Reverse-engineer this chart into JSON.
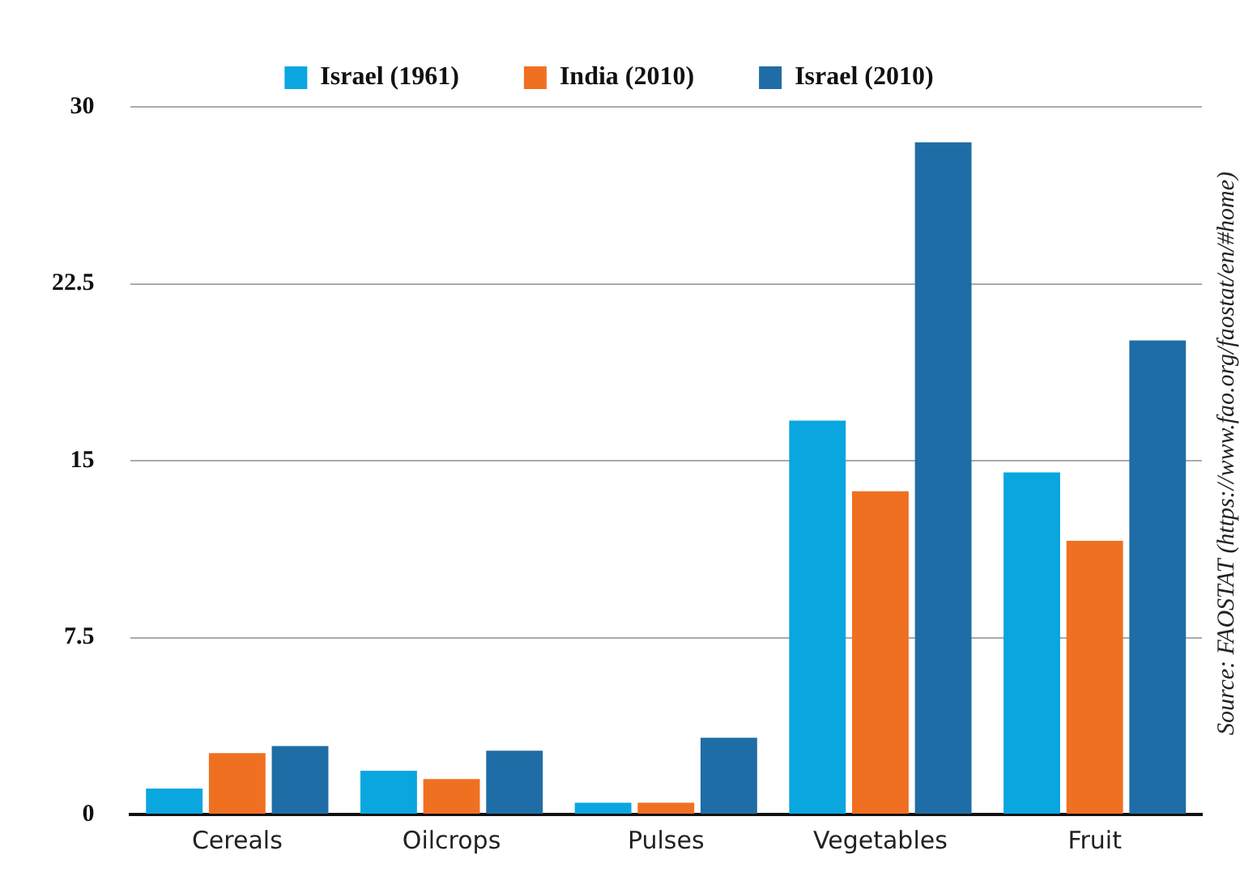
{
  "chart_data": {
    "type": "bar",
    "categories": [
      "Cereals",
      "Oilcrops",
      "Pulses",
      "Vegetables",
      "Fruit"
    ],
    "series": [
      {
        "name": "Israel (1961)",
        "color": "#0aa6e0",
        "values": [
          1.1,
          1.85,
          0.5,
          16.7,
          14.5
        ]
      },
      {
        "name": "India (2010)",
        "color": "#f07022",
        "values": [
          2.6,
          1.5,
          0.5,
          13.7,
          11.6
        ]
      },
      {
        "name": "Israel (2010)",
        "color": "#1f6da6",
        "values": [
          2.9,
          2.7,
          3.25,
          28.5,
          20.1
        ]
      }
    ],
    "ylim": [
      0,
      30
    ],
    "yticks": [
      0,
      7.5,
      15,
      22.5,
      30
    ],
    "grid": "y",
    "legend": "top",
    "annotations": [
      "Source: FAOSTAT (https://www.fao.org/faostat/en/#home)"
    ]
  }
}
